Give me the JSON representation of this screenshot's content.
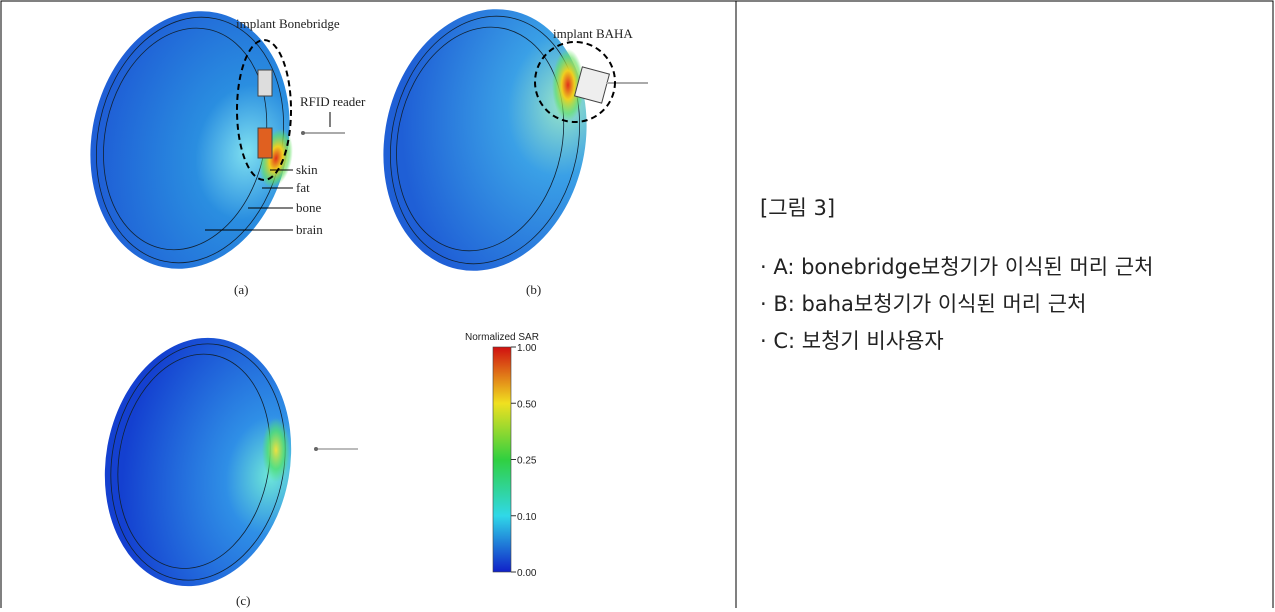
{
  "figure": {
    "panel_a": {
      "implant_label": "implant Bonebridge",
      "reader_label": "RFID reader",
      "layers": [
        "skin",
        "fat",
        "bone",
        "brain"
      ],
      "caption": "(a)"
    },
    "panel_b": {
      "implant_label": "implant BAHA",
      "caption": "(b)"
    },
    "panel_c": {
      "caption": "(c)"
    },
    "colorbar": {
      "title": "Normalized SAR",
      "ticks": [
        "1.00",
        "0.50",
        "0.25",
        "0.10",
        "0.00"
      ]
    }
  },
  "description": {
    "heading": "[그림 3]",
    "items": [
      "· A: bonebridge보청기가 이식된 머리 근처",
      "· B: baha보청기가 이식된 머리 근처",
      "· C: 보청기 비사용자"
    ]
  }
}
